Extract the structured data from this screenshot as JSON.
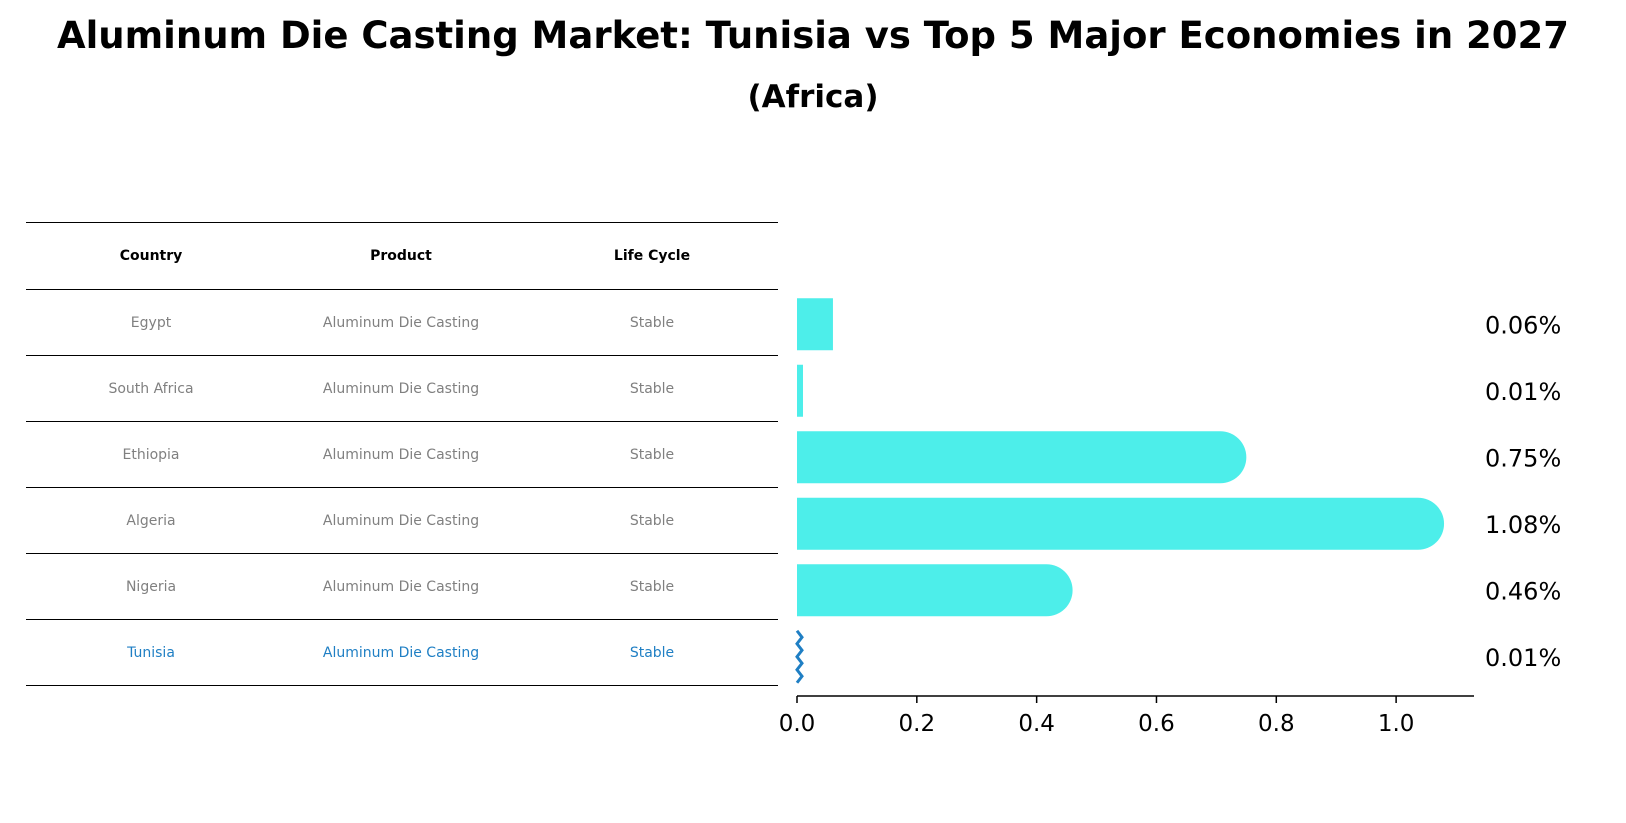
{
  "title": "Aluminum Die Casting Market: Tunisia vs Top 5 Major Economies in 2027",
  "subtitle": "(Africa)",
  "colors": {
    "bar": "#4deeea",
    "highlight": "#1f7fc4",
    "muted_text": "#808080"
  },
  "table": {
    "headers": [
      "Country",
      "Product",
      "Life Cycle"
    ],
    "rows": [
      {
        "country": "Egypt",
        "product": "Aluminum Die Casting",
        "life_cycle": "Stable"
      },
      {
        "country": "South Africa",
        "product": "Aluminum Die Casting",
        "life_cycle": "Stable"
      },
      {
        "country": "Ethiopia",
        "product": "Aluminum Die Casting",
        "life_cycle": "Stable"
      },
      {
        "country": "Algeria",
        "product": "Aluminum Die Casting",
        "life_cycle": "Stable"
      },
      {
        "country": "Nigeria",
        "product": "Aluminum Die Casting",
        "life_cycle": "Stable"
      },
      {
        "country": "Tunisia",
        "product": "Aluminum Die Casting",
        "life_cycle": "Stable"
      }
    ],
    "highlight_row": "Tunisia"
  },
  "chart_data": {
    "type": "bar",
    "orientation": "horizontal",
    "categories": [
      "Egypt",
      "South Africa",
      "Ethiopia",
      "Algeria",
      "Nigeria",
      "Tunisia"
    ],
    "values": [
      0.06,
      0.01,
      0.75,
      1.08,
      0.46,
      0.01
    ],
    "value_labels": [
      "0.06%",
      "0.01%",
      "0.75%",
      "1.08%",
      "0.46%",
      "0.01%"
    ],
    "xlim": [
      0,
      1.13
    ],
    "xticks": [
      0.0,
      0.2,
      0.4,
      0.6,
      0.8,
      1.0
    ],
    "xtick_labels": [
      "0.0",
      "0.2",
      "0.4",
      "0.6",
      "0.8",
      "1.0"
    ],
    "xlabel": "",
    "ylabel": "",
    "grid": false,
    "legend": "none",
    "highlight": "Tunisia"
  }
}
